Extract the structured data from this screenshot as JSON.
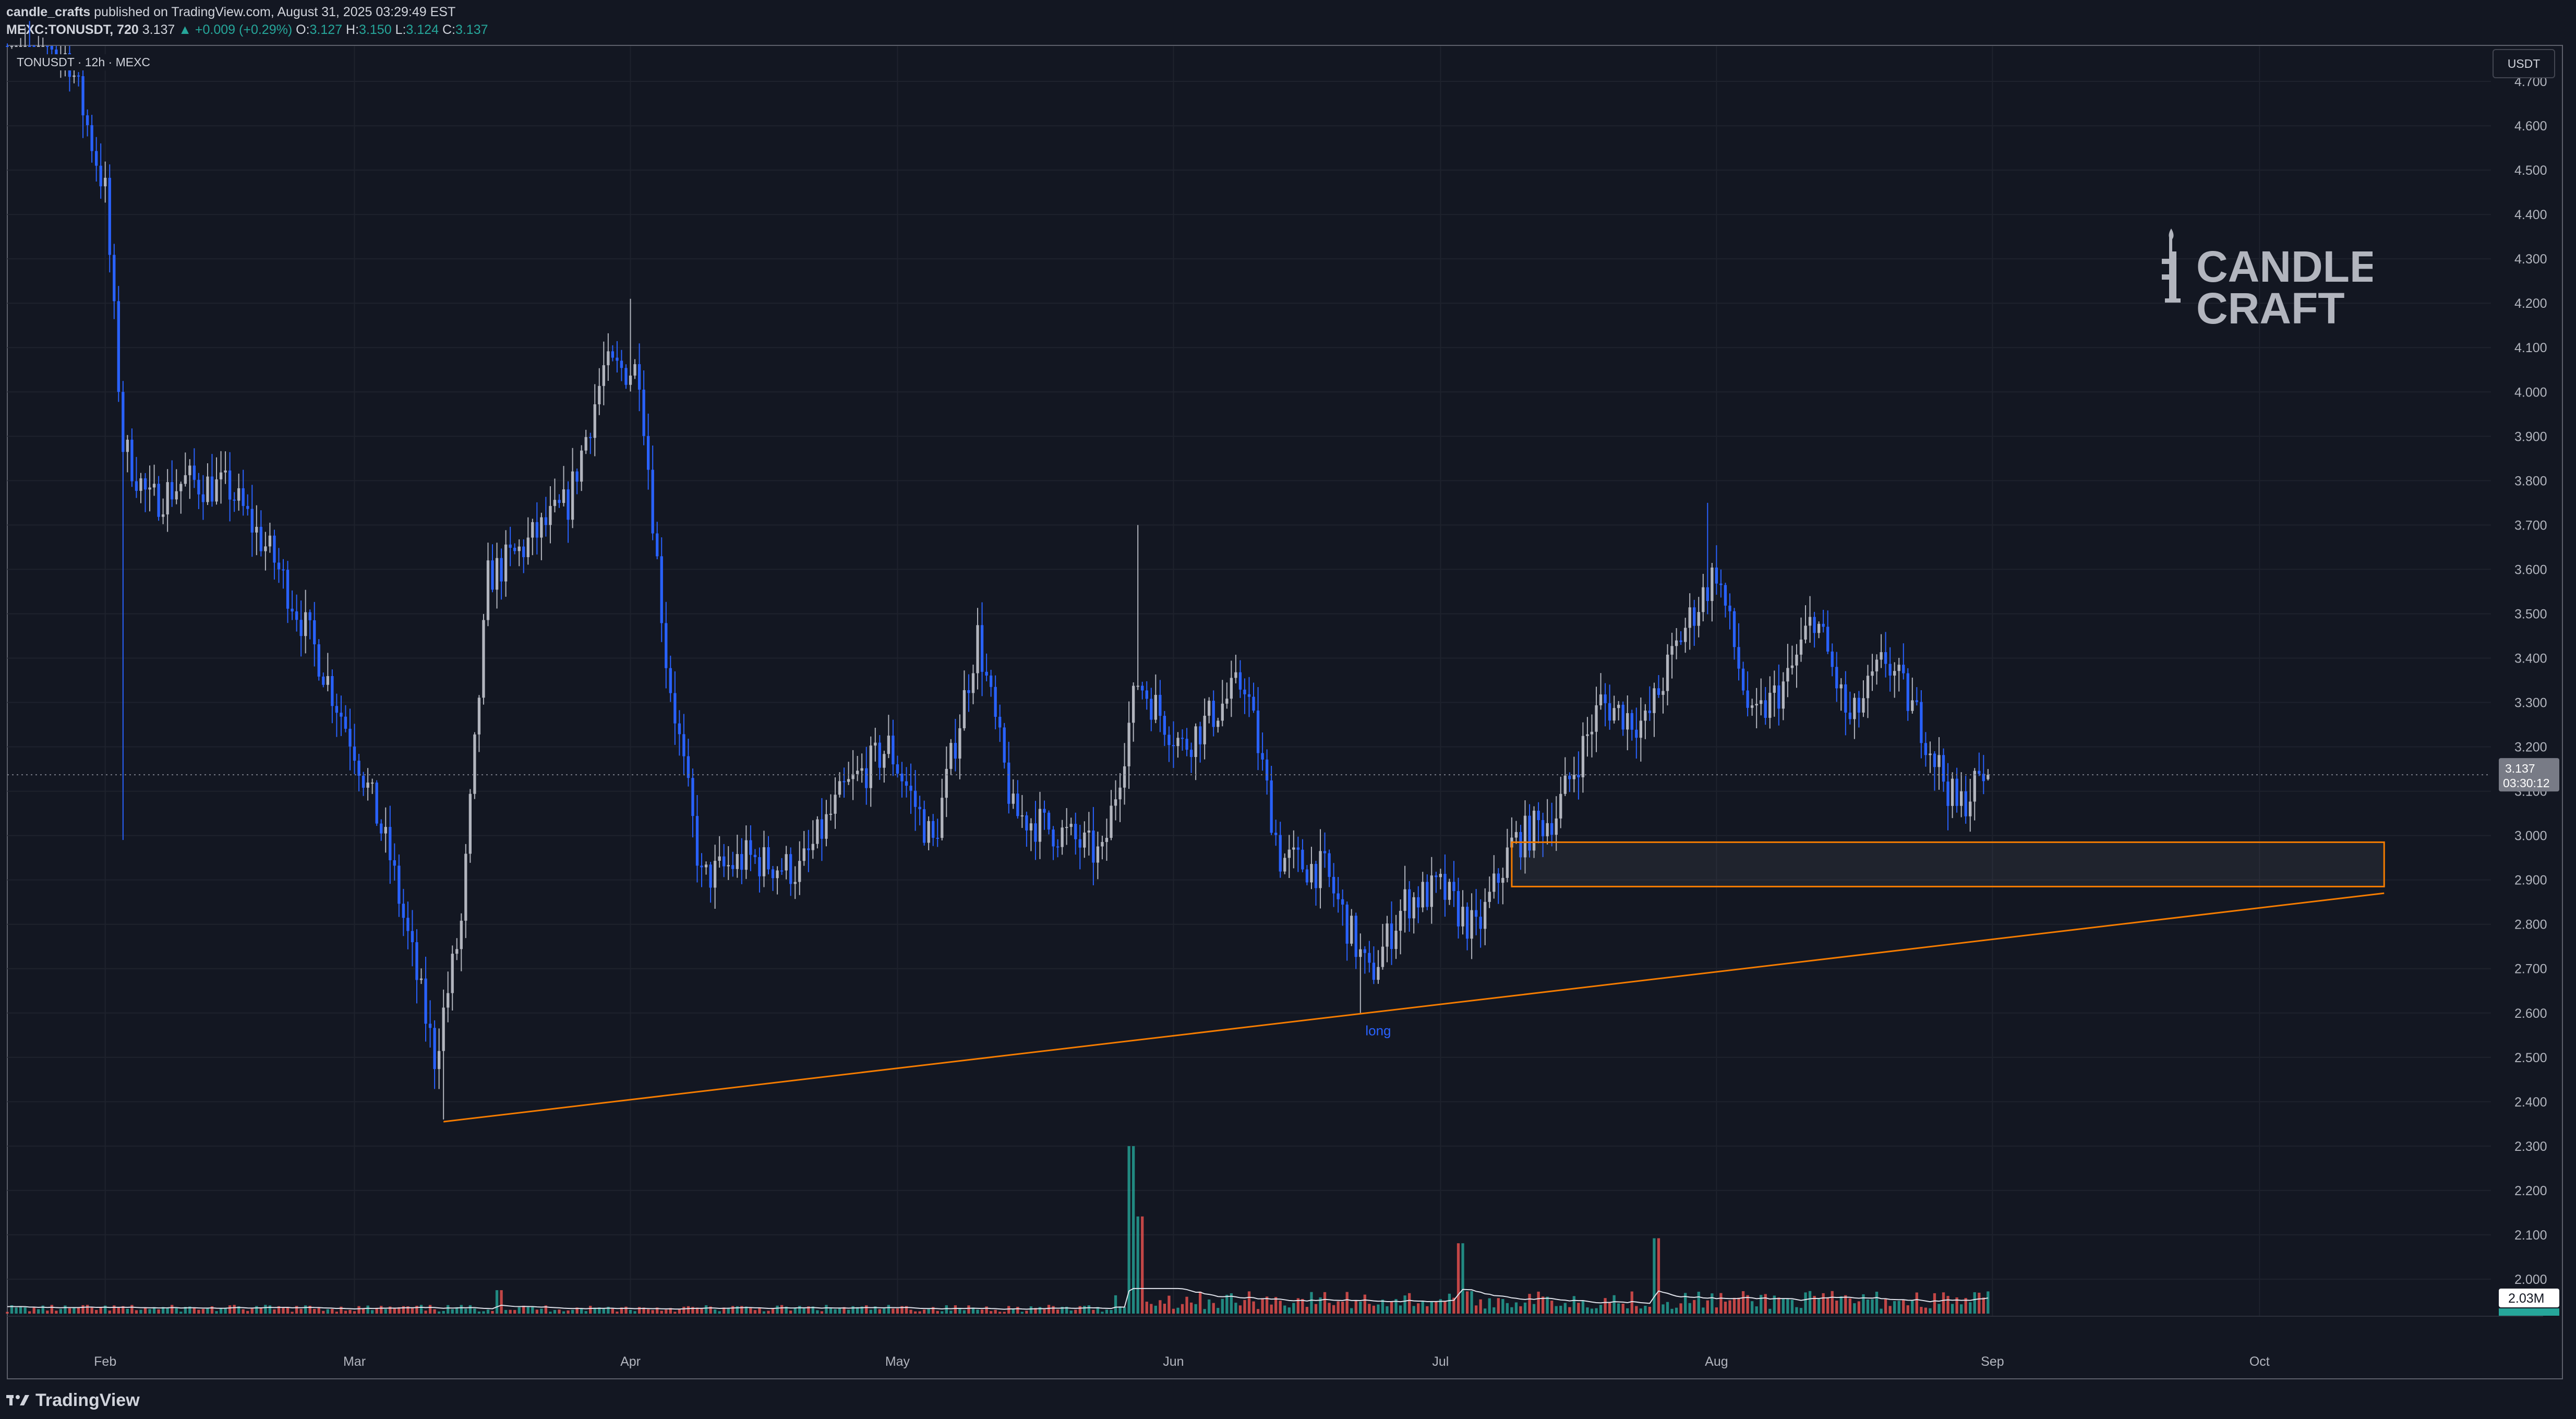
{
  "header": {
    "author": "candle_crafts",
    "published": "published on TradingView.com, August 31, 2025 03:29:49 EST",
    "symbol_line": "MEXC:TONUSDT, 720",
    "last": "3.137",
    "change": "▲ +0.009 (+0.29%)",
    "o_label": "O:",
    "o_value": "3.127",
    "h_label": "H:",
    "h_value": "3.150",
    "l_label": "L:",
    "l_value": "3.124",
    "c_label": "C:",
    "c_value": "3.137"
  },
  "chart_legend": "TONUSDT · 12h · MEXC",
  "currency_button": "USDT",
  "brand": {
    "name": "TradingView"
  },
  "watermark": {
    "line1": "CANDLE",
    "line2": "CRAFT"
  },
  "colors": {
    "background": "#131722",
    "up_candle": "#b2b5be",
    "down_candle": "#2962ff",
    "vol_up": "#26a69a",
    "vol_down": "#ef5350",
    "drawing": "#f57c00",
    "axis_text": "#b2b5be"
  },
  "chart_data": {
    "type": "candlestick",
    "symbol": "TONUSDT",
    "interval": "12h",
    "exchange": "MEXC",
    "ylim": [
      1.92,
      4.78
    ],
    "y_ticks": [
      "4.700",
      "4.600",
      "4.500",
      "4.400",
      "4.300",
      "4.200",
      "4.100",
      "4.000",
      "3.900",
      "3.800",
      "3.700",
      "3.600",
      "3.500",
      "3.400",
      "3.300",
      "3.200",
      "3.100",
      "3.000",
      "2.900",
      "2.800",
      "2.700",
      "2.600",
      "2.500",
      "2.400",
      "2.300",
      "2.200",
      "2.100",
      "2.000"
    ],
    "x_ticks": [
      "Feb",
      "Mar",
      "Apr",
      "May",
      "Jun",
      "Jul",
      "Aug",
      "Sep",
      "Oct"
    ],
    "x_tick_dates": [
      "2025-02-01",
      "2025-03-01",
      "2025-04-01",
      "2025-05-01",
      "2025-06-01",
      "2025-07-01",
      "2025-08-01",
      "2025-09-01",
      "2025-10-01"
    ],
    "x_range": [
      "2025-01-21",
      "2025-10-27"
    ],
    "closes": [
      {
        "date": "2025-01-22",
        "close": 4.85
      },
      {
        "date": "2025-01-28",
        "close": 4.75
      },
      {
        "date": "2025-02-01",
        "close": 4.45
      },
      {
        "date": "2025-02-03",
        "close": 3.88
      },
      {
        "date": "2025-02-06",
        "close": 3.75
      },
      {
        "date": "2025-02-10",
        "close": 3.8
      },
      {
        "date": "2025-02-15",
        "close": 3.78
      },
      {
        "date": "2025-02-20",
        "close": 3.62
      },
      {
        "date": "2025-02-25",
        "close": 3.4
      },
      {
        "date": "2025-03-01",
        "close": 3.2
      },
      {
        "date": "2025-03-05",
        "close": 2.95
      },
      {
        "date": "2025-03-10",
        "close": 2.5
      },
      {
        "date": "2025-03-13",
        "close": 2.8
      },
      {
        "date": "2025-03-16",
        "close": 3.58
      },
      {
        "date": "2025-03-20",
        "close": 3.65
      },
      {
        "date": "2025-03-25",
        "close": 3.75
      },
      {
        "date": "2025-03-29",
        "close": 4.05
      },
      {
        "date": "2025-04-02",
        "close": 4.05
      },
      {
        "date": "2025-04-05",
        "close": 3.4
      },
      {
        "date": "2025-04-09",
        "close": 2.9
      },
      {
        "date": "2025-04-14",
        "close": 2.95
      },
      {
        "date": "2025-04-20",
        "close": 2.92
      },
      {
        "date": "2025-04-25",
        "close": 3.1
      },
      {
        "date": "2025-04-30",
        "close": 3.2
      },
      {
        "date": "2025-05-05",
        "close": 2.98
      },
      {
        "date": "2025-05-10",
        "close": 3.45
      },
      {
        "date": "2025-05-14",
        "close": 3.05
      },
      {
        "date": "2025-05-20",
        "close": 3.0
      },
      {
        "date": "2025-05-24",
        "close": 2.95
      },
      {
        "date": "2025-05-28",
        "close": 3.35
      },
      {
        "date": "2025-06-02",
        "close": 3.2
      },
      {
        "date": "2025-06-09",
        "close": 3.35
      },
      {
        "date": "2025-06-13",
        "close": 2.95
      },
      {
        "date": "2025-06-18",
        "close": 2.92
      },
      {
        "date": "2025-06-23",
        "close": 2.68
      },
      {
        "date": "2025-06-27",
        "close": 2.85
      },
      {
        "date": "2025-07-01",
        "close": 2.88
      },
      {
        "date": "2025-07-05",
        "close": 2.78
      },
      {
        "date": "2025-07-09",
        "close": 2.98
      },
      {
        "date": "2025-07-14",
        "close": 3.05
      },
      {
        "date": "2025-07-19",
        "close": 3.3
      },
      {
        "date": "2025-07-24",
        "close": 3.25
      },
      {
        "date": "2025-07-28",
        "close": 3.45
      },
      {
        "date": "2025-08-01",
        "close": 3.6
      },
      {
        "date": "2025-08-05",
        "close": 3.25
      },
      {
        "date": "2025-08-09",
        "close": 3.35
      },
      {
        "date": "2025-08-12",
        "close": 3.5
      },
      {
        "date": "2025-08-16",
        "close": 3.25
      },
      {
        "date": "2025-08-20",
        "close": 3.4
      },
      {
        "date": "2025-08-24",
        "close": 3.25
      },
      {
        "date": "2025-08-28",
        "close": 3.06
      },
      {
        "date": "2025-08-31",
        "close": 3.137
      }
    ],
    "last_price": "3.137",
    "countdown": "03:30:12",
    "volume_last": "2.03M",
    "annotations": [
      {
        "type": "trendline",
        "from": {
          "date": "2025-03-11",
          "price": 2.355
        },
        "to": {
          "date": "2025-10-15",
          "price": 2.87
        }
      },
      {
        "type": "rectangle",
        "from": {
          "date": "2025-07-09",
          "price": 2.885
        },
        "to": {
          "date": "2025-10-15",
          "price": 2.985
        }
      },
      {
        "type": "text",
        "text": "long",
        "date": "2025-06-24",
        "price": 2.585
      }
    ]
  }
}
